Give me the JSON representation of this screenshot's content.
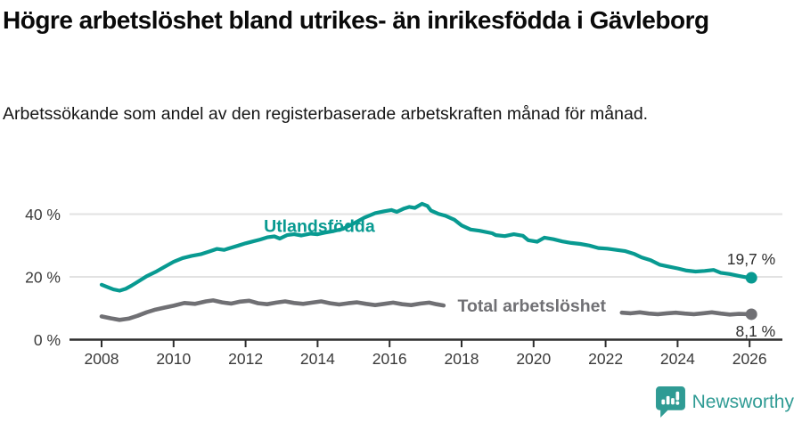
{
  "header": {
    "title": "Högre arbetslöshet bland utrikes- än inrikesfödda i Gävleborg",
    "subtitle": "Arbetssökande som andel av den registerbaserade arbetskraften månad för månad."
  },
  "chart_data": {
    "type": "line",
    "title": "Högre arbetslöshet bland utrikes- än inrikesfödda i Gävleborg",
    "subtitle": "Arbetssökande som andel av den registerbaserade arbetskraften månad för månad.",
    "unit": "percent of registered labour force",
    "grid": true,
    "legend_position": "inline-labels",
    "x_axis": {
      "ticks": [
        2008,
        2010,
        2012,
        2014,
        2016,
        2018,
        2020,
        2022,
        2024,
        2026
      ],
      "range": [
        2008,
        2026.05
      ]
    },
    "y_axis": {
      "ticks": [
        0,
        20,
        40
      ],
      "tick_labels": [
        "0 %",
        "20 %",
        "40 %"
      ],
      "range": [
        0,
        46
      ]
    },
    "series": [
      {
        "name": "Utlandsfödda",
        "color": "#089a91",
        "end_value": 19.7,
        "end_label": "19,7 %",
        "label_pos": {
          "x": 2014.05,
          "y": 36.3
        },
        "segments": [
          [
            [
              2008.0,
              17.5
            ],
            [
              2008.17,
              16.7
            ],
            [
              2008.33,
              16.0
            ],
            [
              2008.5,
              15.6
            ],
            [
              2008.67,
              16.2
            ],
            [
              2008.83,
              17.2
            ],
            [
              2009.0,
              18.4
            ],
            [
              2009.25,
              20.2
            ],
            [
              2009.5,
              21.6
            ],
            [
              2009.75,
              23.2
            ],
            [
              2010.0,
              24.8
            ],
            [
              2010.25,
              26.0
            ],
            [
              2010.5,
              26.7
            ],
            [
              2010.75,
              27.2
            ],
            [
              2011.0,
              28.1
            ],
            [
              2011.2,
              28.9
            ],
            [
              2011.4,
              28.6
            ],
            [
              2011.6,
              29.3
            ],
            [
              2011.8,
              30.0
            ],
            [
              2012.0,
              30.7
            ],
            [
              2012.2,
              31.3
            ],
            [
              2012.4,
              31.9
            ],
            [
              2012.6,
              32.6
            ],
            [
              2012.8,
              32.9
            ],
            [
              2012.95,
              32.2
            ],
            [
              2013.15,
              33.3
            ],
            [
              2013.35,
              33.6
            ],
            [
              2013.55,
              33.2
            ],
            [
              2013.8,
              33.8
            ],
            [
              2014.0,
              33.6
            ],
            [
              2014.2,
              34.1
            ],
            [
              2014.45,
              34.6
            ],
            [
              2014.7,
              35.3
            ],
            [
              2015.0,
              37.0
            ],
            [
              2015.3,
              38.9
            ],
            [
              2015.6,
              40.3
            ],
            [
              2015.85,
              40.9
            ],
            [
              2016.05,
              41.3
            ],
            [
              2016.2,
              40.7
            ],
            [
              2016.4,
              41.8
            ],
            [
              2016.55,
              42.3
            ],
            [
              2016.7,
              42.0
            ],
            [
              2016.9,
              43.3
            ],
            [
              2017.05,
              42.6
            ],
            [
              2017.15,
              41.1
            ],
            [
              2017.35,
              40.1
            ],
            [
              2017.55,
              39.5
            ],
            [
              2017.8,
              38.2
            ],
            [
              2018.0,
              36.4
            ],
            [
              2018.25,
              35.1
            ],
            [
              2018.5,
              34.7
            ],
            [
              2018.85,
              33.9
            ],
            [
              2018.95,
              33.3
            ],
            [
              2019.2,
              33.0
            ],
            [
              2019.45,
              33.6
            ],
            [
              2019.7,
              33.1
            ],
            [
              2019.85,
              31.7
            ],
            [
              2020.1,
              31.2
            ],
            [
              2020.3,
              32.5
            ],
            [
              2020.55,
              32.0
            ],
            [
              2020.8,
              31.3
            ],
            [
              2021.05,
              30.8
            ],
            [
              2021.3,
              30.5
            ],
            [
              2021.55,
              30.0
            ],
            [
              2021.8,
              29.2
            ],
            [
              2022.05,
              29.0
            ],
            [
              2022.3,
              28.6
            ],
            [
              2022.55,
              28.2
            ],
            [
              2022.8,
              27.3
            ],
            [
              2023.0,
              26.2
            ],
            [
              2023.25,
              25.3
            ],
            [
              2023.5,
              23.9
            ],
            [
              2023.75,
              23.3
            ],
            [
              2024.0,
              22.7
            ],
            [
              2024.25,
              22.0
            ],
            [
              2024.5,
              21.7
            ],
            [
              2024.75,
              21.9
            ],
            [
              2025.0,
              22.2
            ],
            [
              2025.2,
              21.3
            ],
            [
              2025.45,
              20.9
            ],
            [
              2025.7,
              20.3
            ],
            [
              2025.9,
              19.9
            ],
            [
              2026.05,
              19.7
            ]
          ]
        ]
      },
      {
        "name": "Total arbetslöshet",
        "color": "#707074",
        "end_value": 8.1,
        "end_label": "8,1 %",
        "label_pos": {
          "x": 2019.95,
          "y": 10.95
        },
        "segments": [
          [
            [
              2008.0,
              7.4
            ],
            [
              2008.25,
              6.8
            ],
            [
              2008.5,
              6.3
            ],
            [
              2008.75,
              6.7
            ],
            [
              2009.0,
              7.6
            ],
            [
              2009.25,
              8.7
            ],
            [
              2009.5,
              9.6
            ],
            [
              2009.75,
              10.2
            ],
            [
              2010.0,
              10.8
            ],
            [
              2010.3,
              11.7
            ],
            [
              2010.6,
              11.4
            ],
            [
              2010.9,
              12.2
            ],
            [
              2011.1,
              12.5
            ],
            [
              2011.35,
              11.9
            ],
            [
              2011.6,
              11.5
            ],
            [
              2011.85,
              12.1
            ],
            [
              2012.1,
              12.4
            ],
            [
              2012.35,
              11.6
            ],
            [
              2012.6,
              11.3
            ],
            [
              2012.85,
              11.8
            ],
            [
              2013.1,
              12.2
            ],
            [
              2013.35,
              11.7
            ],
            [
              2013.6,
              11.4
            ],
            [
              2013.85,
              11.8
            ],
            [
              2014.1,
              12.2
            ],
            [
              2014.35,
              11.6
            ],
            [
              2014.6,
              11.2
            ],
            [
              2014.85,
              11.6
            ],
            [
              2015.1,
              11.9
            ],
            [
              2015.35,
              11.4
            ],
            [
              2015.6,
              11.0
            ],
            [
              2015.85,
              11.4
            ],
            [
              2016.1,
              11.8
            ],
            [
              2016.35,
              11.3
            ],
            [
              2016.6,
              11.0
            ],
            [
              2016.85,
              11.5
            ],
            [
              2017.1,
              11.8
            ],
            [
              2017.3,
              11.3
            ],
            [
              2017.5,
              10.9
            ]
          ],
          [
            [
              2022.45,
              8.6
            ],
            [
              2022.7,
              8.4
            ],
            [
              2022.95,
              8.7
            ],
            [
              2023.2,
              8.3
            ],
            [
              2023.45,
              8.1
            ],
            [
              2023.7,
              8.4
            ],
            [
              2023.95,
              8.6
            ],
            [
              2024.2,
              8.3
            ],
            [
              2024.45,
              8.1
            ],
            [
              2024.7,
              8.4
            ],
            [
              2024.95,
              8.7
            ],
            [
              2025.2,
              8.3
            ],
            [
              2025.45,
              8.0
            ],
            [
              2025.7,
              8.2
            ],
            [
              2026.05,
              8.1
            ]
          ]
        ]
      }
    ]
  },
  "footer": {
    "brand": "Newsworthy",
    "logo_icon": "bar-chart-speech-bubble-icon",
    "brand_color": "#2f9b94"
  }
}
